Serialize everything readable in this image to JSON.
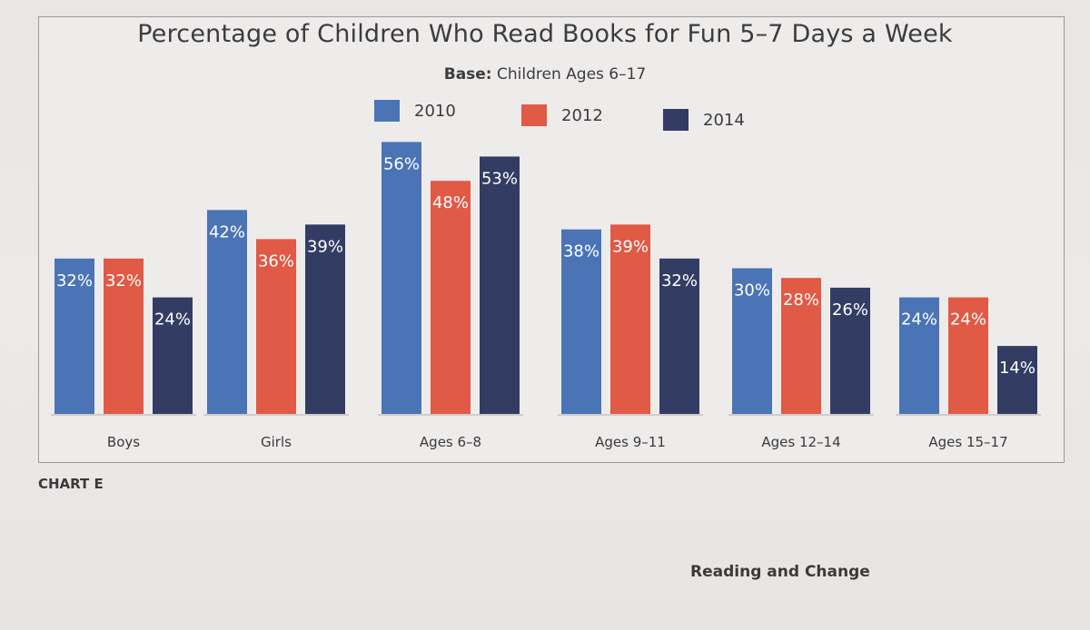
{
  "chart_data": {
    "type": "bar",
    "title": "Percentage of Children Who Read Books for Fun 5–7 Days a Week",
    "subtitle_bold": "Base:",
    "subtitle_rest": " Children Ages 6–17",
    "categories": [
      "Boys",
      "Girls",
      "Ages 6–8",
      "Ages 9–11",
      "Ages 12–14",
      "Ages 15–17"
    ],
    "series": [
      {
        "name": "2010",
        "color": "#4b74b6",
        "values": [
          32,
          42,
          56,
          38,
          30,
          24
        ],
        "labels": [
          "32%",
          "42%",
          "56%",
          "38%",
          "30%",
          "24%"
        ]
      },
      {
        "name": "2012",
        "color": "#e05a46",
        "values": [
          32,
          36,
          48,
          39,
          28,
          24
        ],
        "labels": [
          "32%",
          "36%",
          "48%",
          "39%",
          "28%",
          "24%"
        ]
      },
      {
        "name": "2014",
        "color": "#333d64",
        "values": [
          24,
          39,
          53,
          32,
          26,
          14
        ],
        "labels": [
          "24%",
          "39%",
          "53%",
          "32%",
          "26%",
          "14%"
        ]
      }
    ],
    "ylim": [
      0,
      60
    ],
    "grid": false,
    "legend_position": "top-center"
  },
  "page": {
    "chart_label": "CHART E",
    "footer_text": "Reading and Change"
  }
}
